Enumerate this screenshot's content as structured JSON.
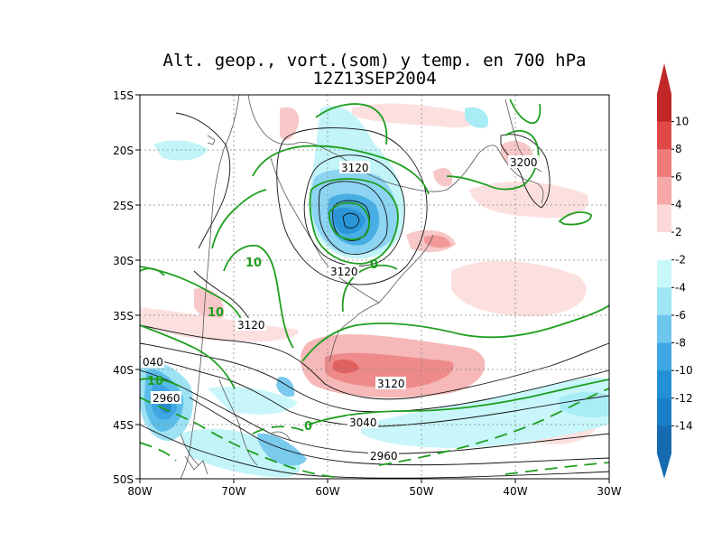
{
  "title": "Alt. geop., vort.(som) y temp. en 700 hPa",
  "subtitle": "12Z13SEP2004",
  "axes": {
    "lat_labels": [
      "15S",
      "20S",
      "25S",
      "30S",
      "35S",
      "40S",
      "45S",
      "50S"
    ],
    "lon_labels": [
      "80W",
      "70W",
      "60W",
      "50W",
      "40W",
      "30W"
    ]
  },
  "colorbar": {
    "labels": [
      "10",
      "8",
      "6",
      "4",
      "2",
      "-2",
      "-4",
      "-6",
      "-8",
      "-10",
      "-12",
      "-14"
    ],
    "colors": [
      "#c02828",
      "#e04848",
      "#ee7a7a",
      "#f6a8a8",
      "#fcd8d8",
      "#ffffff",
      "#c8f8fa",
      "#a0e6f4",
      "#6ec6ee",
      "#3ea6e2",
      "#2490d6",
      "#1b7ec8",
      "#166ab0"
    ]
  },
  "contour_labels": {
    "geopotential": [
      "3120",
      "3120",
      "3120",
      "3120",
      "3200",
      "3040",
      "2960",
      "040",
      "2960"
    ],
    "temperature": [
      "10",
      "10",
      "10",
      "0",
      "0"
    ]
  },
  "colors": {
    "temperature_contour": "#1e9e1e",
    "geopotential_contour": "#000000",
    "coastline": "#505050",
    "positive_vorticity": "#f4b4b4",
    "negative_vorticity": "#b8f0f8"
  }
}
